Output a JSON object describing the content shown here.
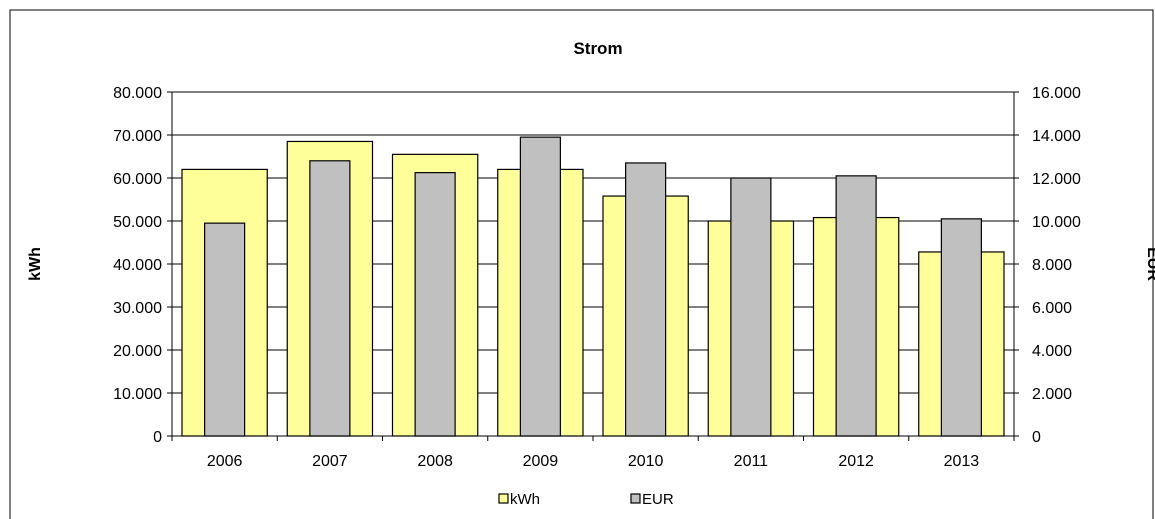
{
  "chart_data": {
    "type": "bar",
    "title": "Strom",
    "categories": [
      "2006",
      "2007",
      "2008",
      "2009",
      "2010",
      "2011",
      "2012",
      "2013"
    ],
    "series": [
      {
        "name": "kWh",
        "axis": "left",
        "color": "#FFFF99",
        "values": [
          62000,
          68500,
          65500,
          62000,
          55800,
          50000,
          50800,
          42800
        ]
      },
      {
        "name": "EUR",
        "axis": "right",
        "color": "#C0C0C0",
        "values": [
          9900,
          12800,
          12250,
          13900,
          12700,
          12000,
          12100,
          10100
        ]
      }
    ],
    "ylabel": "kWh",
    "y2label": "EUR",
    "ylim": [
      0,
      80000
    ],
    "y2lim": [
      0,
      16000
    ],
    "yticks": [
      "0",
      "10.000",
      "20.000",
      "30.000",
      "40.000",
      "50.000",
      "60.000",
      "70.000",
      "80.000"
    ],
    "y2ticks": [
      "0",
      "2.000",
      "4.000",
      "6.000",
      "8.000",
      "10.000",
      "12.000",
      "14.000",
      "16.000"
    ],
    "grid": true,
    "legend_position": "bottom-center",
    "border_color": "#000000"
  }
}
